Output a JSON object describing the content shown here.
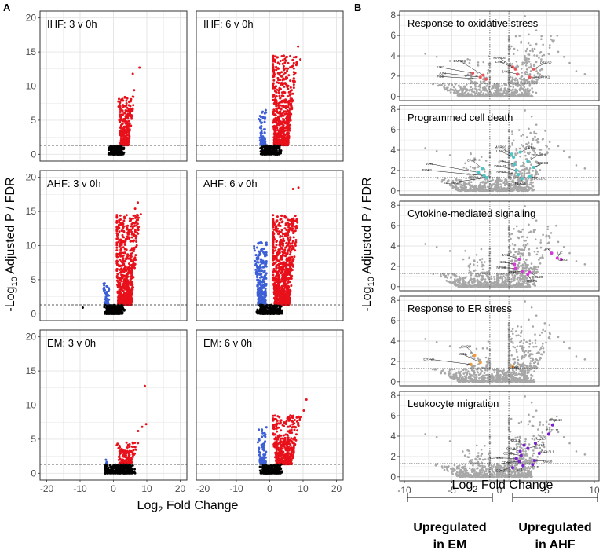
{
  "panel_labels": [
    "A",
    "B"
  ],
  "colors": {
    "up": "#e8101a",
    "down": "#3d5fd6",
    "ns": "#000000",
    "b_bg": "#a7a7a7",
    "oxidative": "#e8555a",
    "death": "#49c8cc",
    "cytokine": "#d43bd4",
    "er": "#f29a3a",
    "leuk": "#7b1fd1",
    "grid": "#e4e4e4",
    "frame": "#333333"
  },
  "panel_a": {
    "ylabel_prefix": "-Log",
    "ylabel_sub": "10",
    "ylabel_suffix": " Adjusted P / FDR",
    "xlabel_prefix": "Log",
    "xlabel_sub": "2",
    "xlabel_suffix": " Fold Change",
    "x_ticks": [
      "-20",
      "-10",
      "0",
      "10",
      "20"
    ],
    "y_ticks": [
      "0",
      "5",
      "10",
      "15",
      "20"
    ]
  },
  "panel_b": {
    "ylabel_prefix": "-Log",
    "ylabel_sub": "10",
    "ylabel_suffix": " Adjusted P / FDR",
    "xlabel_prefix": "Log",
    "xlabel_sub": "2",
    "xlabel_suffix": " Fold Change",
    "x_ticks": [
      "-10",
      "-5",
      "0",
      "5",
      "10"
    ],
    "y_ticks": [
      "0",
      "2",
      "4",
      "6",
      "8"
    ],
    "bracket_left_line1": "Upregulated",
    "bracket_left_line2": "in EM",
    "bracket_right_line1": "Upregulated",
    "bracket_right_line2": "in AHF"
  },
  "chart_data": [
    {
      "type": "scatter",
      "title": "IHF: 3 v 0h",
      "xlabel": "Log2 Fold Change",
      "ylabel": "-Log10 Adjusted P / FDR",
      "xlim": [
        -22,
        22
      ],
      "ylim": [
        -1,
        21
      ],
      "threshold_y": 1.3,
      "series": [
        {
          "name": "up",
          "color": "up",
          "n": 300,
          "x_range": [
            1.2,
            7.5
          ],
          "y_range": [
            1.35,
            8.5
          ],
          "x_center": 3.0,
          "extra": [
            {
              "x": 5.8,
              "y": 11.8
            },
            {
              "x": 7.8,
              "y": 12.7
            },
            {
              "x": 6.2,
              "y": 9.4
            }
          ]
        },
        {
          "name": "ns",
          "color": "ns",
          "n": 260,
          "x_range": [
            -1.5,
            3.5
          ],
          "y_range": [
            0,
            1.3
          ],
          "x_center": 0.8,
          "extra": []
        }
      ]
    },
    {
      "type": "scatter",
      "title": "IHF: 6 v 0h",
      "xlabel": "Log2 Fold Change",
      "ylabel": "-Log10 Adjusted P / FDR",
      "xlim": [
        -22,
        22
      ],
      "ylim": [
        -1,
        21
      ],
      "threshold_y": 1.3,
      "series": [
        {
          "name": "down",
          "color": "down",
          "n": 90,
          "x_range": [
            -4.5,
            -1.0
          ],
          "y_range": [
            1.35,
            6.5
          ],
          "x_center": -1.8,
          "extra": []
        },
        {
          "name": "up",
          "color": "up",
          "n": 700,
          "x_range": [
            1.0,
            10.5
          ],
          "y_range": [
            1.35,
            14.5
          ],
          "x_center": 2.8,
          "extra": [
            {
              "x": 8.5,
              "y": 15.8
            },
            {
              "x": 9.2,
              "y": 13.9
            }
          ]
        },
        {
          "name": "ns",
          "color": "ns",
          "n": 240,
          "x_range": [
            -3,
            3.5
          ],
          "y_range": [
            0,
            1.3
          ],
          "x_center": 0.3,
          "extra": []
        }
      ]
    },
    {
      "type": "scatter",
      "title": "AHF: 3 v 0h",
      "xlabel": "Log2 Fold Change",
      "ylabel": "-Log10 Adjusted P / FDR",
      "xlim": [
        -22,
        22
      ],
      "ylim": [
        -1,
        21
      ],
      "threshold_y": 1.3,
      "series": [
        {
          "name": "down",
          "color": "down",
          "n": 45,
          "x_range": [
            -4.0,
            -1.0
          ],
          "y_range": [
            1.35,
            4.5
          ],
          "x_center": -1.8,
          "extra": []
        },
        {
          "name": "up",
          "color": "up",
          "n": 750,
          "x_range": [
            1.0,
            10.0
          ],
          "y_range": [
            1.35,
            14.5
          ],
          "x_center": 2.8,
          "extra": [
            {
              "x": 7.3,
              "y": 16.3
            },
            {
              "x": 6.5,
              "y": 15.4
            },
            {
              "x": 8.2,
              "y": 14.6
            }
          ]
        },
        {
          "name": "ns",
          "color": "ns",
          "n": 240,
          "x_range": [
            -3,
            3.5
          ],
          "y_range": [
            0,
            1.3
          ],
          "x_center": 0.3,
          "extra": [
            {
              "x": -9.2,
              "y": 0.9
            }
          ]
        }
      ]
    },
    {
      "type": "scatter",
      "title": "AHF: 6 v 0h",
      "xlabel": "Log2 Fold Change",
      "ylabel": "-Log10 Adjusted P / FDR",
      "xlim": [
        -22,
        22
      ],
      "ylim": [
        -1,
        21
      ],
      "threshold_y": 1.3,
      "series": [
        {
          "name": "down",
          "color": "down",
          "n": 320,
          "x_range": [
            -6.0,
            -1.0
          ],
          "y_range": [
            1.35,
            10.5
          ],
          "x_center": -2.0,
          "extra": []
        },
        {
          "name": "up",
          "color": "up",
          "n": 900,
          "x_range": [
            1.0,
            11.0
          ],
          "y_range": [
            1.35,
            14.5
          ],
          "x_center": 3.0,
          "extra": [
            {
              "x": 7.0,
              "y": 18.3
            },
            {
              "x": 8.6,
              "y": 18.5
            }
          ]
        },
        {
          "name": "ns",
          "color": "ns",
          "n": 260,
          "x_range": [
            -4,
            4
          ],
          "y_range": [
            0,
            1.3
          ],
          "x_center": 0,
          "extra": []
        }
      ]
    },
    {
      "type": "scatter",
      "title": "EM: 3 v 0h",
      "xlabel": "Log2 Fold Change",
      "ylabel": "-Log10 Adjusted P / FDR",
      "xlim": [
        -22,
        22
      ],
      "ylim": [
        -1,
        21
      ],
      "threshold_y": 1.3,
      "series": [
        {
          "name": "down",
          "color": "down",
          "n": 4,
          "x_range": [
            -2.5,
            -1.2
          ],
          "y_range": [
            1.3,
            2.0
          ],
          "x_center": -1.8,
          "extra": []
        },
        {
          "name": "up",
          "color": "up",
          "n": 140,
          "x_range": [
            1.0,
            9.5
          ],
          "y_range": [
            1.35,
            4.6
          ],
          "x_center": 3.0,
          "extra": [
            {
              "x": 9.4,
              "y": 12.8
            },
            {
              "x": 8.6,
              "y": 6.8
            },
            {
              "x": 7.4,
              "y": 6.2
            },
            {
              "x": 9.8,
              "y": 7.2
            }
          ]
        },
        {
          "name": "ns",
          "color": "ns",
          "n": 300,
          "x_range": [
            -2.5,
            8.5
          ],
          "y_range": [
            0,
            1.3
          ],
          "x_center": 1.5,
          "extra": []
        }
      ]
    },
    {
      "type": "scatter",
      "title": "EM: 6 v 0h",
      "xlabel": "Log2 Fold Change",
      "ylabel": "-Log10 Adjusted P / FDR",
      "xlim": [
        -22,
        22
      ],
      "ylim": [
        -1,
        21
      ],
      "threshold_y": 1.3,
      "series": [
        {
          "name": "down",
          "color": "down",
          "n": 110,
          "x_range": [
            -5.0,
            -1.0
          ],
          "y_range": [
            1.35,
            6.8
          ],
          "x_center": -1.8,
          "extra": []
        },
        {
          "name": "up",
          "color": "up",
          "n": 500,
          "x_range": [
            1.0,
            12.0
          ],
          "y_range": [
            1.35,
            8.5
          ],
          "x_center": 3.5,
          "extra": [
            {
              "x": 11.0,
              "y": 10.8
            },
            {
              "x": 10.2,
              "y": 9.2
            }
          ]
        },
        {
          "name": "ns",
          "color": "ns",
          "n": 250,
          "x_range": [
            -3,
            4
          ],
          "y_range": [
            0,
            1.3
          ],
          "x_center": 0.5,
          "extra": []
        }
      ]
    },
    {
      "type": "scatter",
      "title": "Response to oxidative stress",
      "xlim": [
        -10.5,
        10.5
      ],
      "ylim": [
        -0.4,
        8.4
      ],
      "threshold_y": 1.3,
      "vlines": [
        -1,
        1
      ],
      "highlight_color": "oxidative",
      "highlights": [
        {
          "label": "KLF2",
          "x": -2.8,
          "y": 2.3,
          "lx": -6.2,
          "ly": 2.75
        },
        {
          "label": "EMPD3",
          "x": -1.7,
          "y": 2.1,
          "lx": -4.2,
          "ly": 3.4
        },
        {
          "label": "JUN",
          "x": -2.0,
          "y": 1.9,
          "lx": -6.0,
          "ly": 2.2
        },
        {
          "label": "FOS",
          "x": -1.4,
          "y": 1.7,
          "lx": -6.2,
          "ly": 1.85
        },
        {
          "label": "MAPK6",
          "x": 1.4,
          "y": 2.9,
          "lx": 0.0,
          "ly": 3.7
        },
        {
          "label": "LINK1",
          "x": 1.7,
          "y": 2.7,
          "lx": 0.1,
          "ly": 3.3
        },
        {
          "label": "JAK2",
          "x": 1.9,
          "y": 2.2,
          "lx": 0.7,
          "ly": 2.35
        },
        {
          "label": "PTGS2",
          "x": 3.6,
          "y": 2.7,
          "lx": 4.9,
          "ly": 3.2
        },
        {
          "label": "EPHX1",
          "x": 3.2,
          "y": 1.9,
          "lx": 4.7,
          "ly": 1.8
        }
      ]
    },
    {
      "type": "scatter",
      "title": "Programmed cell death",
      "xlim": [
        -10.5,
        10.5
      ],
      "ylim": [
        -0.4,
        8.4
      ],
      "threshold_y": 1.3,
      "vlines": [
        -1,
        1
      ],
      "highlight_color": "death",
      "highlights": [
        {
          "label": "CASP",
          "x": -1.8,
          "y": 2.2,
          "lx": -2.9,
          "ly": 2.9
        },
        {
          "label": "JUN",
          "x": -2.2,
          "y": 1.8,
          "lx": -7.4,
          "ly": 2.55
        },
        {
          "label": "EGR1",
          "x": -1.6,
          "y": 1.5,
          "lx": -7.6,
          "ly": 1.9
        },
        {
          "label": "SLC25A27",
          "x": -1.3,
          "y": 1.3,
          "lx": -5.0,
          "ly": 0.7
        },
        {
          "label": "MAPK6",
          "x": 1.3,
          "y": 3.6,
          "lx": 0.1,
          "ly": 4.2
        },
        {
          "label": "LINK1",
          "x": 1.5,
          "y": 3.3,
          "lx": 0.2,
          "ly": 3.75
        },
        {
          "label": "NFKBIA",
          "x": 2.2,
          "y": 3.8,
          "lx": 3.2,
          "ly": 4.1
        },
        {
          "label": "JAK2",
          "x": 1.6,
          "y": 2.6,
          "lx": 0.3,
          "ly": 2.8
        },
        {
          "label": "TNFAIP3",
          "x": 3.0,
          "y": 2.9,
          "lx": 4.1,
          "ly": 3.4
        },
        {
          "label": "DRAM1",
          "x": 1.8,
          "y": 2.0,
          "lx": 0.1,
          "ly": 2.3
        },
        {
          "label": "BIRC3",
          "x": 3.6,
          "y": 2.3,
          "lx": 4.6,
          "ly": 2.6
        },
        {
          "label": "NR4A",
          "x": 2.0,
          "y": 1.6,
          "lx": 0.2,
          "ly": 1.75
        },
        {
          "label": "PEA15",
          "x": 2.4,
          "y": 1.2,
          "lx": 2.2,
          "ly": 0.6
        },
        {
          "label": "BCL2A1",
          "x": 3.2,
          "y": 1.4,
          "lx": 4.3,
          "ly": 1.1
        }
      ]
    },
    {
      "type": "scatter",
      "title": "Cytokine-mediated signaling",
      "xlim": [
        -10.5,
        10.5
      ],
      "ylim": [
        -0.4,
        8.4
      ],
      "threshold_y": 1.3,
      "vlines": [
        -1,
        1
      ],
      "highlight_color": "cytokine",
      "highlights": [
        {
          "label": "JAK2",
          "x": 2.1,
          "y": 2.7,
          "lx": 0.7,
          "ly": 3.0
        },
        {
          "label": "IL32",
          "x": 1.6,
          "y": 2.2,
          "lx": 0.4,
          "ly": 2.3
        },
        {
          "label": "NFKB",
          "x": 1.7,
          "y": 1.8,
          "lx": 0.2,
          "ly": 1.75
        },
        {
          "label": "IRF1",
          "x": 2.4,
          "y": 1.5,
          "lx": 1.4,
          "ly": 1.3
        },
        {
          "label": "CCL20",
          "x": 3.2,
          "y": 1.4,
          "lx": 4.0,
          "ly": 0.85
        },
        {
          "label": "TRAF1",
          "x": 3.0,
          "y": 1.2,
          "lx": 3.4,
          "ly": 0.45
        },
        {
          "label": "TNF",
          "x": 5.5,
          "y": 3.3,
          "lx": 5.1,
          "ly": 3.6
        },
        {
          "label": "LIF",
          "x": 6.1,
          "y": 2.8,
          "lx": 6.4,
          "ly": 3.2
        },
        {
          "label": "CSF2",
          "x": 6.5,
          "y": 2.7,
          "lx": 6.7,
          "ly": 2.55
        }
      ]
    },
    {
      "type": "scatter",
      "title": "Response to ER stress",
      "xlim": [
        -10.5,
        10.5
      ],
      "ylim": [
        -0.4,
        8.4
      ],
      "threshold_y": 1.3,
      "vlines": [
        -1,
        1
      ],
      "highlight_color": "er",
      "highlights": [
        {
          "label": "CHOP",
          "x": -2.6,
          "y": 2.6,
          "lx": -3.5,
          "ly": 3.35
        },
        {
          "label": "JUN",
          "x": -2.0,
          "y": 1.9,
          "lx": -3.9,
          "ly": 2.6
        },
        {
          "label": "ERP27",
          "x": -3.0,
          "y": 1.7,
          "lx": -7.4,
          "ly": 2.1
        },
        {
          "label": "FOS1",
          "x": 1.4,
          "y": 1.5,
          "lx": 1.8,
          "ly": 1.25
        }
      ]
    },
    {
      "type": "scatter",
      "title": "Leukocyte migration",
      "xlim": [
        -10.5,
        10.5
      ],
      "ylim": [
        -0.4,
        8.4
      ],
      "threshold_y": 1.3,
      "vlines": [
        -1,
        1
      ],
      "highlight_color": "leuk",
      "highlights": [
        {
          "label": "CXCL10",
          "x": 5.6,
          "y": 5.1,
          "lx": 5.9,
          "ly": 5.45
        },
        {
          "label": "CXCL11",
          "x": 5.2,
          "y": 4.2,
          "lx": 5.6,
          "ly": 4.45
        },
        {
          "label": "CCR7",
          "x": 3.8,
          "y": 3.3,
          "lx": 4.4,
          "ly": 3.6
        },
        {
          "label": "CCL3",
          "x": 2.6,
          "y": 3.1,
          "lx": 1.7,
          "ly": 3.45
        },
        {
          "label": "CCL4",
          "x": 3.0,
          "y": 2.8,
          "lx": 4.3,
          "ly": 3.0
        },
        {
          "label": "CCL2",
          "x": 2.2,
          "y": 2.5,
          "lx": 1.2,
          "ly": 2.65
        },
        {
          "label": "CCL5",
          "x": 2.3,
          "y": 2.1,
          "lx": 0.9,
          "ly": 2.2
        },
        {
          "label": "CCL3L1",
          "x": 4.2,
          "y": 2.3,
          "lx": 5.1,
          "ly": 2.35
        },
        {
          "label": "LGALS3",
          "x": 1.8,
          "y": 1.8,
          "lx": -0.3,
          "ly": 1.75
        },
        {
          "label": "CD44",
          "x": 2.1,
          "y": 1.5,
          "lx": 0.7,
          "ly": 1.3
        },
        {
          "label": "CCL8",
          "x": 3.7,
          "y": 1.6,
          "lx": 5.1,
          "ly": 1.4
        },
        {
          "label": "SELE",
          "x": 3.5,
          "y": 1.2,
          "lx": 3.7,
          "ly": 0.85
        },
        {
          "label": "IL1B",
          "x": 2.5,
          "y": 1.1,
          "lx": 2.3,
          "ly": 0.55
        },
        {
          "label": "CD69",
          "x": 1.4,
          "y": 0.9,
          "lx": 0.1,
          "ly": 0.5
        }
      ]
    }
  ]
}
